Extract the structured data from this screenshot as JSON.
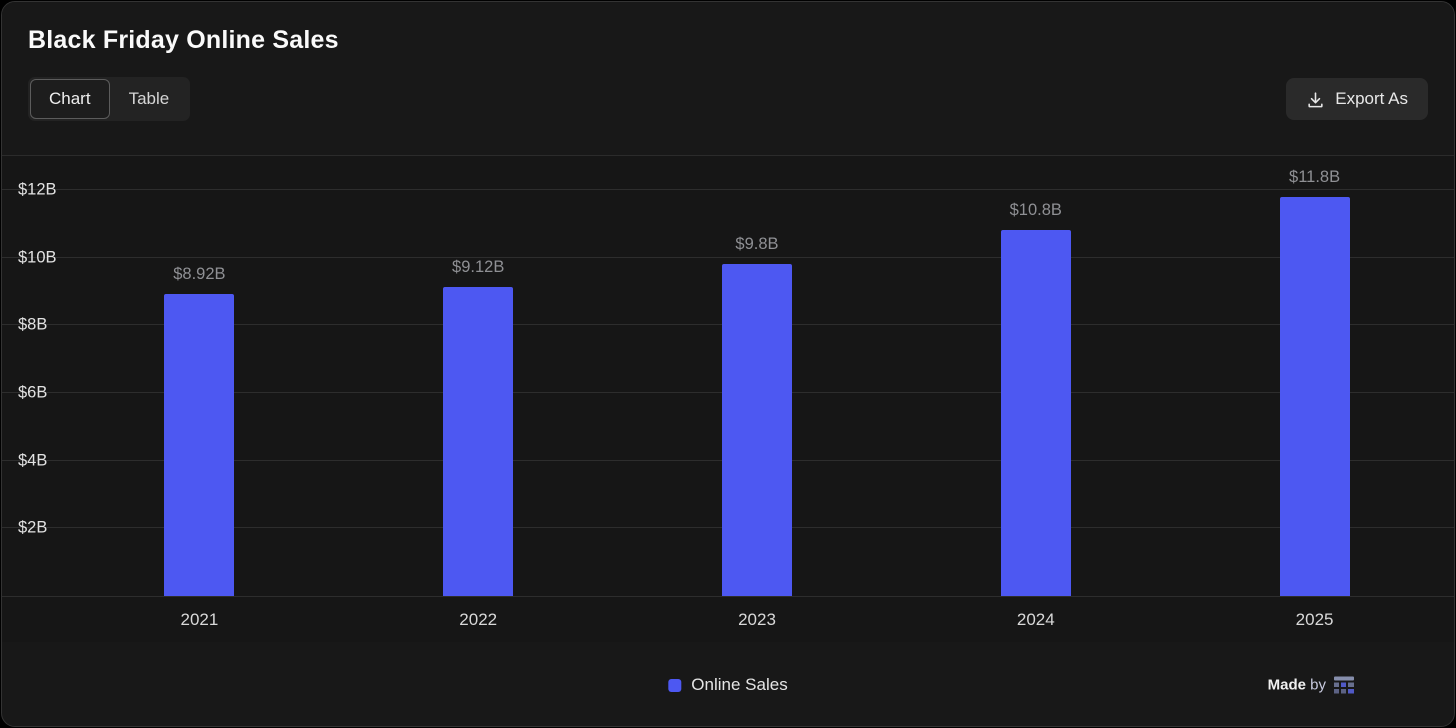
{
  "header": {
    "title": "Black Friday Online Sales",
    "tabs": [
      {
        "label": "Chart",
        "active": true
      },
      {
        "label": "Table",
        "active": false
      }
    ],
    "export_label": "Export As"
  },
  "chart_data": {
    "type": "bar",
    "title": "Black Friday Online Sales",
    "categories": [
      "2021",
      "2022",
      "2023",
      "2024",
      "2025"
    ],
    "values": [
      8.92,
      9.12,
      9.8,
      10.8,
      11.8
    ],
    "value_labels": [
      "$8.92B",
      "$9.12B",
      "$9.8B",
      "$10.8B",
      "$11.8B"
    ],
    "series_name": "Online Sales",
    "xlabel": "",
    "ylabel": "",
    "y_ticks": [
      2,
      4,
      6,
      8,
      10,
      12
    ],
    "y_tick_labels": [
      "$2B",
      "$4B",
      "$6B",
      "$8B",
      "$10B",
      "$12B"
    ],
    "ylim": [
      0,
      13
    ],
    "grid": true,
    "legend_position": "bottom",
    "bar_color": "#4d58f2"
  },
  "legend": {
    "label": "Online Sales"
  },
  "footer": {
    "made": "Made",
    "by": "by"
  },
  "colors": {
    "accent": "#4d58f2",
    "card_background": "#181818",
    "chart_background": "#161616",
    "gridline": "#2d2d2d",
    "value_label": "#8f9094"
  }
}
